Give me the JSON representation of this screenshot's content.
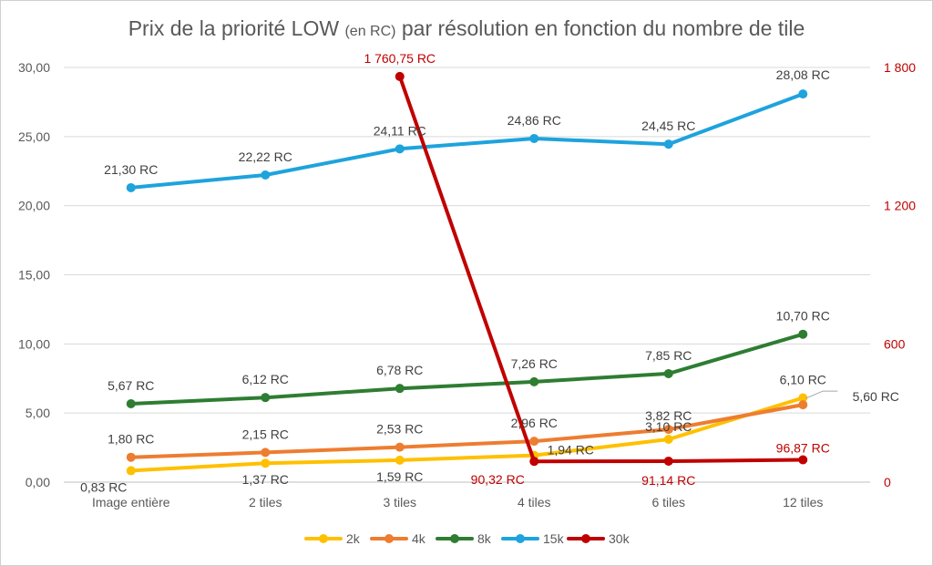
{
  "chart_data": {
    "type": "line",
    "title_main": "Prix de la priorité LOW",
    "title_small": "(en RC)",
    "title_rest": "par résolution en fonction du nombre de tile",
    "categories": [
      "Image entière",
      "2 tiles",
      "3 tiles",
      "4 tiles",
      "6 tiles",
      "12 tiles"
    ],
    "y_left": {
      "ylim": [
        0,
        30
      ],
      "ticks": [
        "0,00",
        "5,00",
        "10,00",
        "15,00",
        "20,00",
        "25,00",
        "30,00"
      ]
    },
    "y_right": {
      "ylim": [
        0,
        1800
      ],
      "ticks": [
        "0",
        "600",
        "1 200",
        "1 800"
      ]
    },
    "grid": true,
    "legend_position": "bottom",
    "series": [
      {
        "name": "2k",
        "axis": "left",
        "color": "#ffc000",
        "values": [
          0.83,
          1.37,
          1.59,
          1.94,
          3.1,
          6.1
        ],
        "labels": [
          "0,83 RC",
          "1,37 RC",
          "1,59 RC",
          "1,94 RC",
          "3,10 RC",
          "6,10 RC"
        ]
      },
      {
        "name": "4k",
        "axis": "left",
        "color": "#ed7d31",
        "values": [
          1.8,
          2.15,
          2.53,
          2.96,
          3.82,
          5.6
        ],
        "labels": [
          "1,80 RC",
          "2,15 RC",
          "2,53 RC",
          "2,96 RC",
          "3,82 RC",
          "5,60 RC"
        ]
      },
      {
        "name": "8k",
        "axis": "left",
        "color": "#2e7d32",
        "values": [
          5.67,
          6.12,
          6.78,
          7.26,
          7.85,
          10.7
        ],
        "labels": [
          "5,67 RC",
          "6,12 RC",
          "6,78 RC",
          "7,26 RC",
          "7,85 RC",
          "10,70 RC"
        ]
      },
      {
        "name": "15k",
        "axis": "left",
        "color": "#1ea3dc",
        "values": [
          21.3,
          22.22,
          24.11,
          24.86,
          24.45,
          28.08
        ],
        "labels": [
          "21,30 RC",
          "22,22 RC",
          "24,11 RC",
          "24,86 RC",
          "24,45 RC",
          "28,08 RC"
        ]
      },
      {
        "name": "30k",
        "axis": "right",
        "color": "#c00000",
        "values": [
          null,
          null,
          1760.75,
          90.32,
          91.14,
          96.87
        ],
        "labels": [
          null,
          null,
          "1 760,75 RC",
          "90,32 RC",
          "91,14 RC",
          "96,87 RC"
        ]
      }
    ]
  }
}
